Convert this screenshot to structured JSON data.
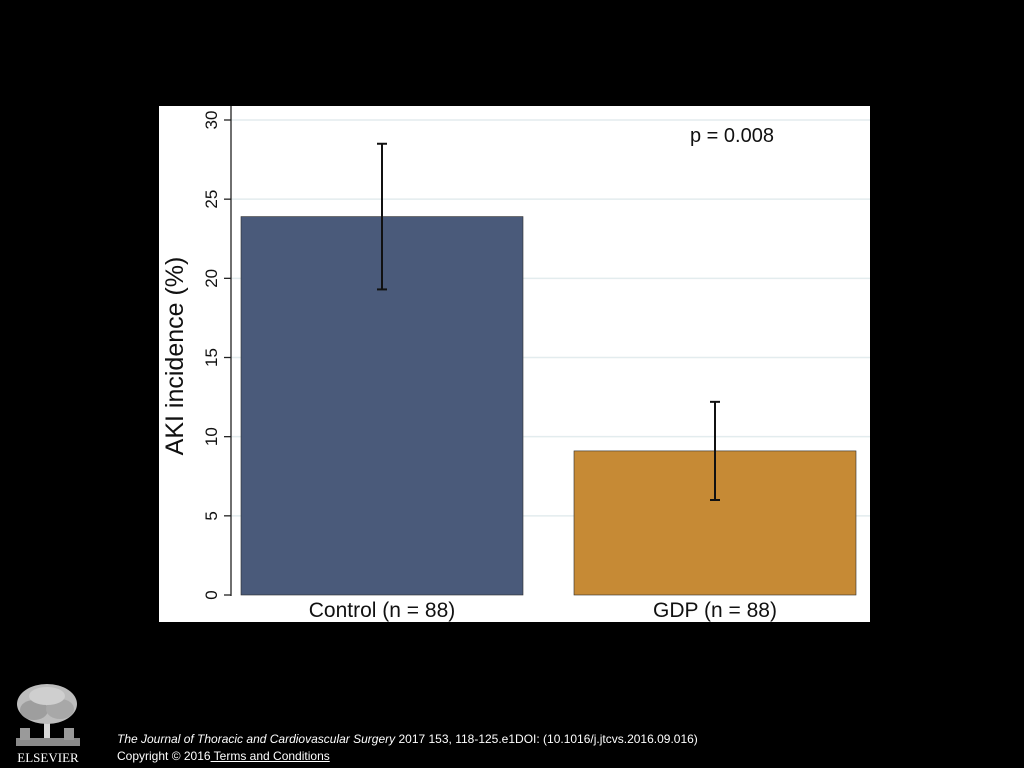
{
  "colors": {
    "background": "#000000",
    "panel": "#ffffff",
    "control_bar": "#4a5a7a",
    "gdp_bar": "#c68a35"
  },
  "chart_data": {
    "type": "bar",
    "categories": [
      "Control (n = 88)",
      "GDP (n = 88)"
    ],
    "values": [
      23.9,
      9.1
    ],
    "error_bars": [
      {
        "low": 19.3,
        "high": 28.5
      },
      {
        "low": 6.0,
        "high": 12.2
      }
    ],
    "ylabel": "AKI incidence (%)",
    "ylim": [
      0,
      30
    ],
    "yticks": [
      "0",
      "5",
      "10",
      "15",
      "20",
      "25",
      "30"
    ],
    "grid": true,
    "annotation": "p = 0.008"
  },
  "footer": {
    "journal": "The Journal of Thoracic and Cardiovascular Surgery",
    "citation_rest": " 2017 153, 118-125.e1DOI: (10.1016/j.jtcvs.2016.09.016)",
    "copyright": "Copyright © 2016",
    "terms_link": " Terms and Conditions",
    "logo_text": "ELSEVIER",
    "logo_icon": "elsevier-tree-icon"
  }
}
